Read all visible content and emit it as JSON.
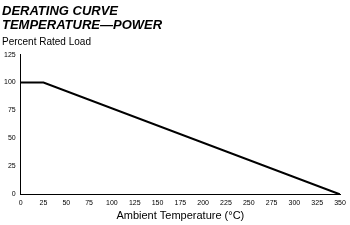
{
  "chart_data": {
    "type": "line",
    "title": [
      "DERATING CURVE",
      "TEMPERATURE—POWER"
    ],
    "y_label": "Percent Rated Load",
    "x_label": "Ambient Temperature (°C)",
    "x": [
      0,
      25,
      350
    ],
    "values": [
      100,
      100,
      0
    ],
    "color": "#000000",
    "xlim": [
      0,
      350
    ],
    "xticks": [
      0,
      25,
      50,
      75,
      100,
      125,
      150,
      175,
      200,
      225,
      250,
      275,
      300,
      325,
      350
    ],
    "ylim": [
      0,
      125
    ],
    "yticks": [
      0,
      25,
      50,
      75,
      100,
      125
    ],
    "grid": false
  }
}
